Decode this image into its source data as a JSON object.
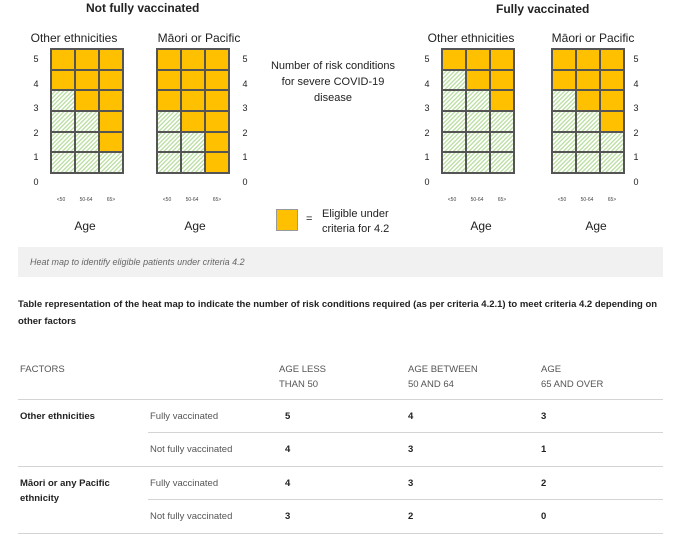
{
  "heatmap": {
    "left_title": "Not fully vaccinated",
    "right_title": "Fully vaccinated",
    "grids": [
      {
        "label": "Other ethnicities",
        "cells": [
          "yyy",
          "yyy",
          "gyy",
          "ggy",
          "ggy",
          "ggg"
        ]
      },
      {
        "label": "Māori or Pacific",
        "cells": [
          "yyy",
          "yyy",
          "yyy",
          "gyy",
          "ggy",
          "ggy"
        ]
      },
      {
        "label": "Other ethnicities",
        "cells": [
          "yyy",
          "gyy",
          "ggy",
          "ggg",
          "ggg",
          "ggg"
        ]
      },
      {
        "label": "Māori or Pacific",
        "cells": [
          "yyy",
          "yyy",
          "gyy",
          "ggy",
          "ggg",
          "ggg"
        ]
      }
    ],
    "y_ticks": [
      "5",
      "4",
      "3",
      "2",
      "1",
      "0"
    ],
    "x_ticks": [
      "<50",
      "50-64",
      "65>"
    ],
    "axis_label": "Age",
    "risk_description": "Number of risk conditions for severe COVID-19 disease",
    "legend_equals": "=",
    "legend_text": "Eligible under criteria for 4.2",
    "colors": {
      "eligible": "#ffc000",
      "not_eligible": "#bfe0a8"
    }
  },
  "caption": "Heat map to identify eligible patients under criteria 4.2",
  "table": {
    "heading": "Table representation of the heat map to indicate the number of risk conditions required (as per criteria 4.2.1) to meet criteria 4.2 depending on other factors",
    "headers": {
      "factors": "FACTORS",
      "col1_line1": "AGE LESS",
      "col1_line2": "THAN 50",
      "col2_line1": "AGE BETWEEN",
      "col2_line2": "50 AND 64",
      "col3_line1": "AGE",
      "col3_line2": "65 AND OVER"
    },
    "rows": [
      {
        "factor": "Other ethnicities",
        "status": "Fully vaccinated",
        "v1": "5",
        "v2": "4",
        "v3": "3"
      },
      {
        "factor": "",
        "status": "Not fully vaccinated",
        "v1": "4",
        "v2": "3",
        "v3": "1"
      },
      {
        "factor": "Māori or any Pacific ethnicity",
        "status": "Fully vaccinated",
        "v1": "4",
        "v2": "3",
        "v3": "2"
      },
      {
        "factor": "",
        "status": "Not fully vaccinated",
        "v1": "3",
        "v2": "2",
        "v3": "0"
      }
    ]
  }
}
